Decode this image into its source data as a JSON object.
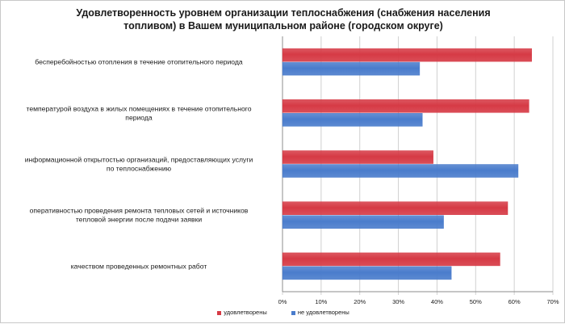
{
  "chart_data": {
    "type": "bar",
    "orientation": "horizontal",
    "title": "Удовлетворенность уровнем организации теплоснабжения (снабжения населения топливом) в Вашем муниципальном районе (городском округе)",
    "title_lines": [
      "Удовлетворенность уровнем организации теплоснабжения (снабжения населения",
      "топливом) в Вашем муниципальном районе (городском округе)"
    ],
    "categories": [
      [
        "бесперебойностью  отопления в течение отопительного периода"
      ],
      [
        "температурой воздуха в жилых помещениях в течение отопительного",
        "периода"
      ],
      [
        "информационной открытостью организаций, предоставляющих услуги",
        "по теплоснабжению"
      ],
      [
        "оперативностью проведения ремонта тепловых сетей и источников",
        "тепловой энергии после подачи заявки"
      ],
      [
        "качеством проведенных ремонтных работ"
      ]
    ],
    "series": [
      {
        "name": "удовлетворены",
        "color": "#d63a45",
        "values": [
          64.5,
          63.8,
          39.0,
          58.3,
          56.3
        ]
      },
      {
        "name": "не удовлетворены",
        "color": "#4a7ccc",
        "values": [
          35.5,
          36.2,
          61.0,
          41.7,
          43.7
        ]
      }
    ],
    "xlim": [
      0,
      70
    ],
    "xticks": [
      "0%",
      "10%",
      "20%",
      "30%",
      "40%",
      "50%",
      "60%",
      "70%"
    ],
    "grid": true,
    "legend_position": "bottom"
  }
}
